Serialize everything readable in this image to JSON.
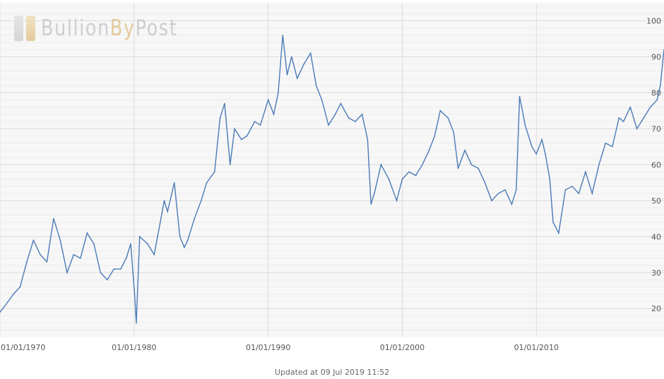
{
  "logo": {
    "part1": "Bullion",
    "part2": "By",
    "part3": "Post"
  },
  "footer": {
    "updated_text": "Updated at 09 Jul 2019 11:52"
  },
  "colors": {
    "line": "#4a7ab7",
    "plot_background": "#f7f7f7",
    "major_grid": "#dddddd",
    "minor_grid": "#ececec",
    "logo_gold": "#e2c28c",
    "logo_silver": "#c8c8c8"
  },
  "chart_data": {
    "type": "line",
    "title": "",
    "xlabel": "",
    "ylabel": "",
    "x_axis_type": "date",
    "xlim": [
      "1970-01-01",
      "2019-07-09"
    ],
    "ylim": [
      12,
      105
    ],
    "y_ticks": [
      20,
      30,
      40,
      50,
      60,
      70,
      80,
      90,
      100
    ],
    "x_ticks": [
      "01/01/1970",
      "01/01/1980",
      "01/01/1990",
      "01/01/2000",
      "01/01/2010"
    ],
    "x_tick_dates": [
      "1970-01-01",
      "1980-01-01",
      "1990-01-01",
      "2000-01-01",
      "2010-01-01"
    ],
    "grid": true,
    "legend": "none",
    "series": [
      {
        "x": [
          "1970-01-01",
          "1970-06-01",
          "1971-01-01",
          "1971-07-01",
          "1972-01-01",
          "1972-07-01",
          "1973-01-01",
          "1973-07-01",
          "1974-01-01",
          "1974-07-01",
          "1975-01-01",
          "1975-07-01",
          "1976-01-01",
          "1976-07-01",
          "1977-01-01",
          "1977-07-01",
          "1978-01-01",
          "1978-07-01",
          "1979-01-01",
          "1979-06-01",
          "1979-10-01",
          "1980-01-15",
          "1980-03-01",
          "1980-06-01",
          "1981-01-01",
          "1981-07-01",
          "1982-01-01",
          "1982-04-01",
          "1982-07-01",
          "1983-01-01",
          "1983-06-01",
          "1983-10-01",
          "1984-01-01",
          "1984-07-01",
          "1985-01-01",
          "1985-06-01",
          "1986-01-01",
          "1986-06-01",
          "1986-10-01",
          "1987-03-01",
          "1987-07-01",
          "1988-01-01",
          "1988-06-01",
          "1989-01-01",
          "1989-06-01",
          "1990-01-01",
          "1990-06-01",
          "1990-10-01",
          "1991-02-01",
          "1991-06-01",
          "1991-10-01",
          "1992-03-01",
          "1992-09-01",
          "1993-03-01",
          "1993-08-01",
          "1994-01-01",
          "1994-07-01",
          "1995-01-01",
          "1995-06-01",
          "1996-01-01",
          "1996-07-01",
          "1997-01-01",
          "1997-06-01",
          "1997-09-01",
          "1997-12-01",
          "1998-06-01",
          "1999-01-01",
          "1999-08-01",
          "2000-01-01",
          "2000-07-01",
          "2001-01-01",
          "2001-07-01",
          "2002-01-01",
          "2002-06-01",
          "2002-11-01",
          "2003-06-01",
          "2003-11-01",
          "2004-03-01",
          "2004-09-01",
          "2005-03-01",
          "2005-09-01",
          "2006-03-01",
          "2006-09-01",
          "2007-03-01",
          "2007-09-01",
          "2008-03-01",
          "2008-07-01",
          "2008-10-01",
          "2009-03-01",
          "2009-09-01",
          "2010-01-01",
          "2010-06-01",
          "2010-09-01",
          "2011-01-01",
          "2011-04-01",
          "2011-09-01",
          "2012-03-01",
          "2012-09-01",
          "2013-03-01",
          "2013-09-01",
          "2014-03-01",
          "2014-09-01",
          "2015-03-01",
          "2015-09-01",
          "2016-03-01",
          "2016-07-01",
          "2017-01-01",
          "2017-07-01",
          "2018-01-01",
          "2018-07-01",
          "2019-01-01",
          "2019-04-01",
          "2019-07-09"
        ],
        "y": [
          19,
          21,
          24,
          26,
          33,
          39,
          35,
          33,
          45,
          39,
          30,
          35,
          34,
          41,
          38,
          30,
          28,
          31,
          31,
          34,
          38,
          24,
          16,
          40,
          38,
          35,
          45,
          50,
          47,
          55,
          40,
          37,
          39,
          45,
          50,
          55,
          58,
          73,
          77,
          60,
          70,
          67,
          68,
          72,
          71,
          78,
          74,
          80,
          96,
          85,
          90,
          84,
          88,
          91,
          82,
          78,
          71,
          74,
          77,
          73,
          72,
          74,
          67,
          49,
          52,
          60,
          56,
          50,
          56,
          58,
          57,
          60,
          64,
          68,
          75,
          73,
          69,
          59,
          64,
          60,
          59,
          55,
          50,
          52,
          53,
          49,
          53,
          79,
          71,
          65,
          63,
          67,
          63,
          56,
          44,
          41,
          53,
          54,
          52,
          58,
          52,
          60,
          66,
          65,
          73,
          72,
          76,
          70,
          73,
          76,
          78,
          82,
          92
        ]
      }
    ]
  }
}
